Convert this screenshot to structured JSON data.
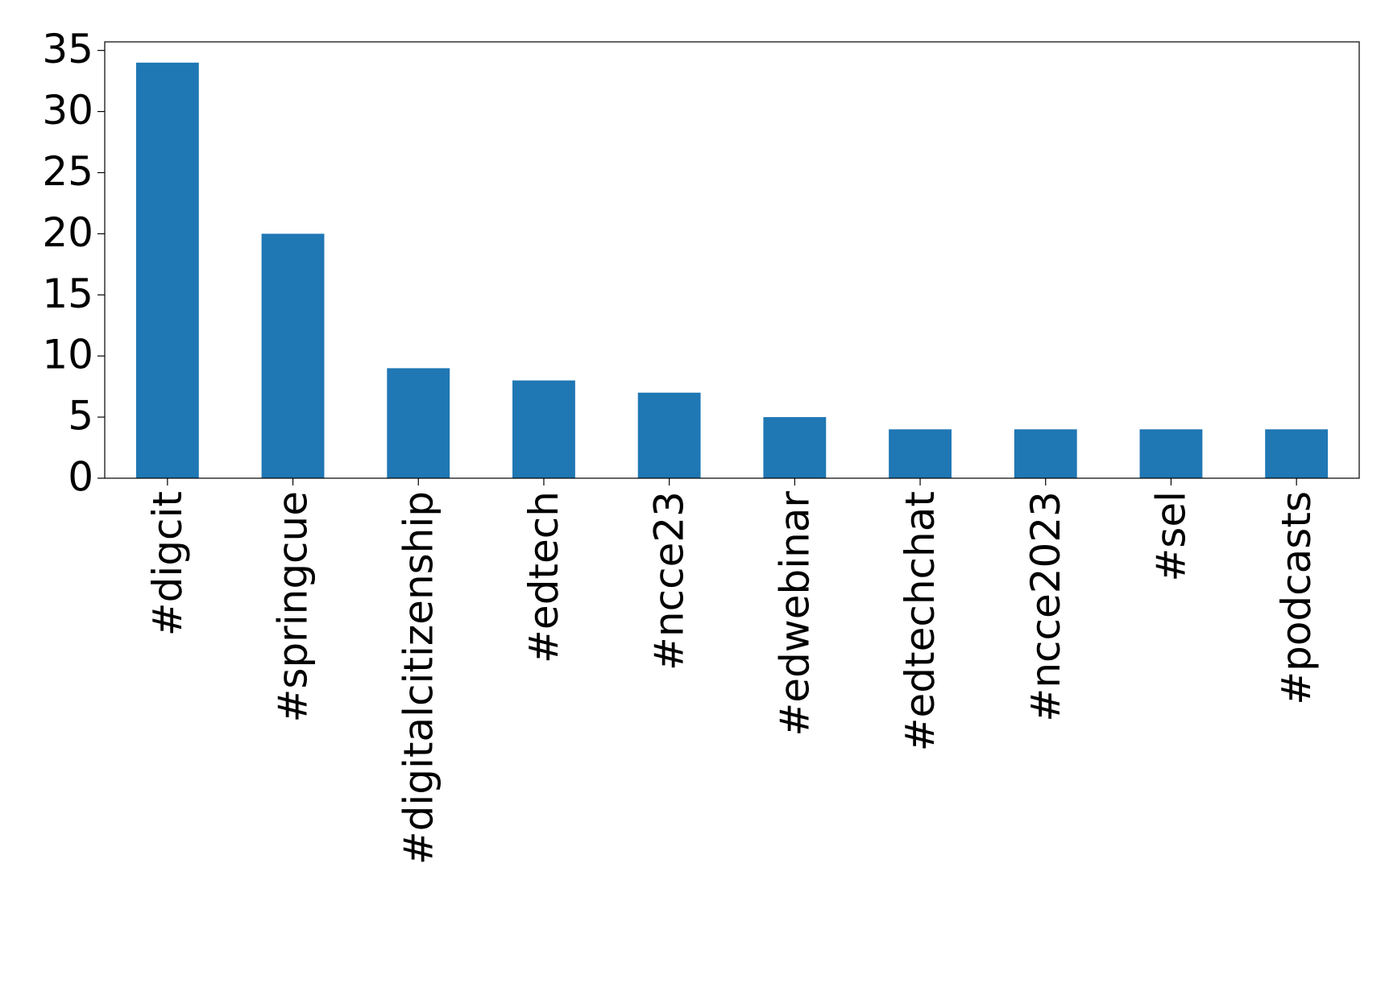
{
  "chart_data": {
    "type": "bar",
    "categories": [
      "#digcit",
      "#springcue",
      "#digitalcitizenship",
      "#edtech",
      "#ncce23",
      "#edwebinar",
      "#edtechchat",
      "#ncce2023",
      "#sel",
      "#podcasts"
    ],
    "values": [
      34,
      20,
      9,
      8,
      7,
      5,
      4,
      4,
      4,
      4
    ],
    "color": "#1f77b4",
    "ylim": [
      0,
      35.7
    ],
    "yticks": [
      0,
      5,
      10,
      15,
      20,
      25,
      30,
      35
    ],
    "grid": false
  }
}
